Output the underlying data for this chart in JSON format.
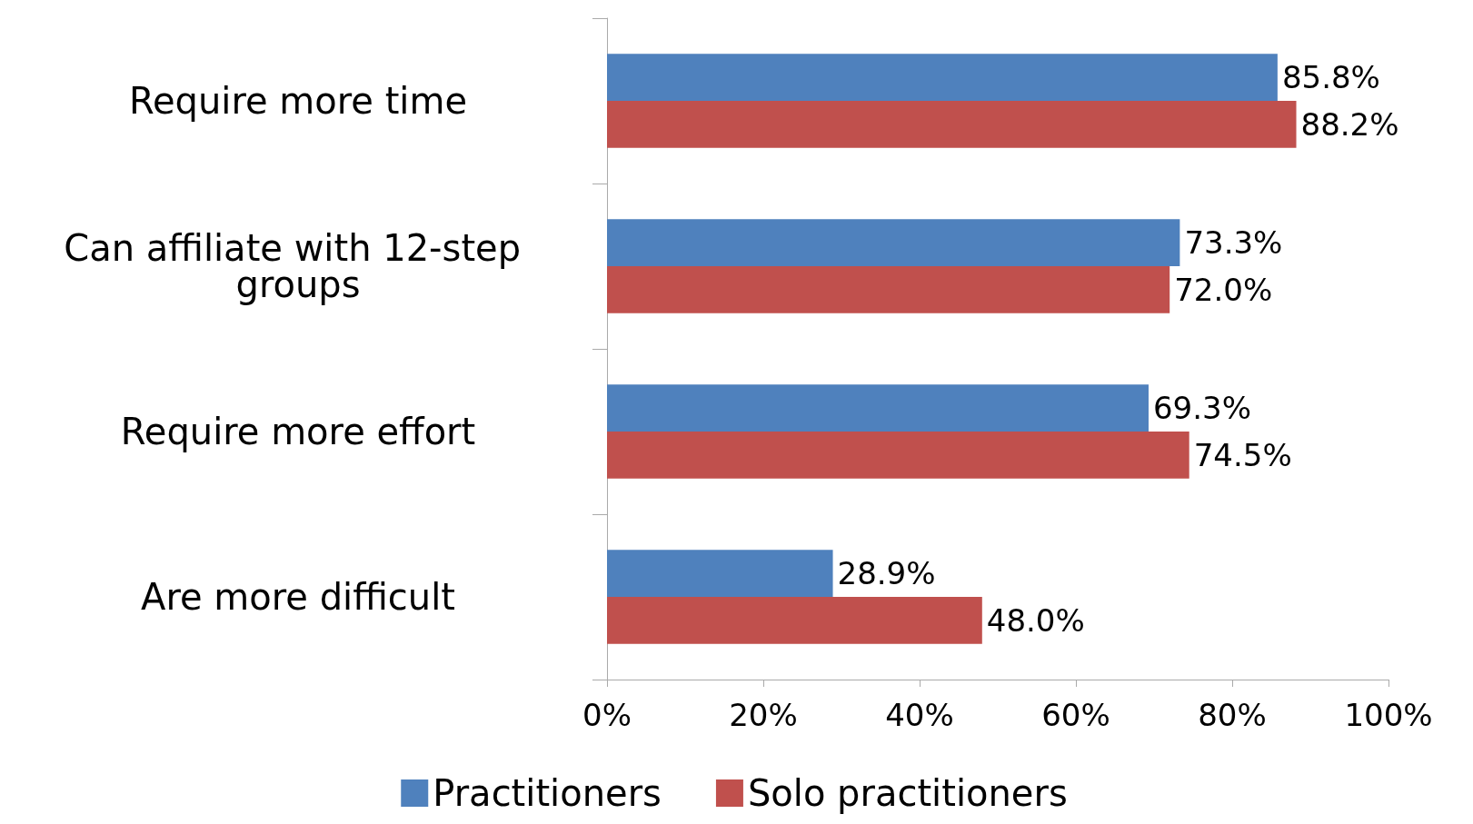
{
  "chart_data": {
    "type": "bar",
    "orientation": "horizontal",
    "categories": [
      "Require more time",
      "Can affiliate with 12-step groups",
      "Require more effort",
      "Are more difficult"
    ],
    "series": [
      {
        "name": "Practitioners",
        "color": "#4f81bd",
        "values": [
          85.8,
          73.3,
          69.3,
          28.9
        ],
        "value_labels": [
          "85.8%",
          "73.3%",
          "69.3%",
          "28.9%"
        ]
      },
      {
        "name": "Solo practitioners",
        "color": "#c0504d",
        "values": [
          88.2,
          72.0,
          74.5,
          48.0
        ],
        "value_labels": [
          "88.2%",
          "72.0%",
          "74.5%",
          "48.0%"
        ]
      }
    ],
    "xlim": [
      0,
      100
    ],
    "xticks": [
      {
        "value": 0,
        "label": "0%"
      },
      {
        "value": 20,
        "label": "20%"
      },
      {
        "value": 40,
        "label": "40%"
      },
      {
        "value": 60,
        "label": "60%"
      },
      {
        "value": 80,
        "label": "80%"
      },
      {
        "value": 100,
        "label": "100%"
      }
    ],
    "grid": false,
    "legend": "bottom"
  }
}
